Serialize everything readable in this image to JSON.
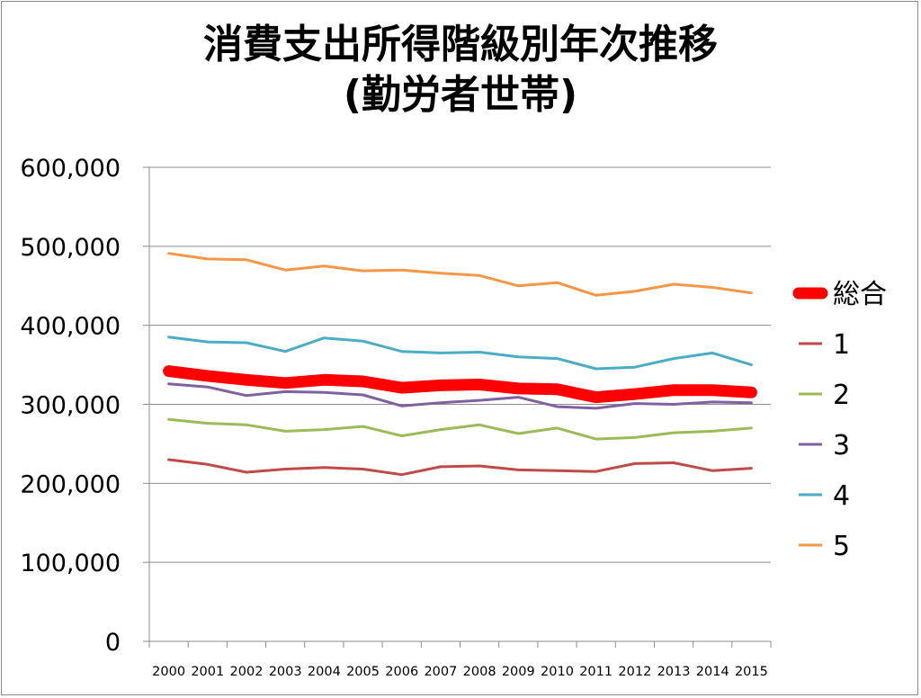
{
  "chart_data": {
    "type": "line",
    "title_lines": [
      "消費支出所得階級別年次推移",
      "(勤労者世帯)"
    ],
    "xlabel": "",
    "ylabel": "",
    "ylim": [
      0,
      600000
    ],
    "yticks": [
      0,
      100000,
      200000,
      300000,
      400000,
      500000,
      600000
    ],
    "ytick_labels": [
      "0",
      "100,000",
      "200,000",
      "300,000",
      "400,000",
      "500,000",
      "600,000"
    ],
    "categories": [
      "2000",
      "2001",
      "2002",
      "2003",
      "2004",
      "2005",
      "2006",
      "2007",
      "2008",
      "2009",
      "2010",
      "2011",
      "2012",
      "2013",
      "2014",
      "2015"
    ],
    "grid": "horizontal",
    "legend_position": "right",
    "series": [
      {
        "name": "総合",
        "color": "#ff0000",
        "emphasis": true,
        "values": [
          342000,
          336000,
          331000,
          327000,
          331000,
          329000,
          321000,
          324000,
          325000,
          320000,
          319000,
          309000,
          313000,
          318000,
          318000,
          315000
        ]
      },
      {
        "name": "1",
        "color": "#be4b48",
        "values": [
          230000,
          224000,
          214000,
          218000,
          220000,
          218000,
          211000,
          221000,
          222000,
          217000,
          216000,
          215000,
          225000,
          226000,
          216000,
          219000
        ]
      },
      {
        "name": "2",
        "color": "#9bbb59",
        "values": [
          281000,
          276000,
          274000,
          266000,
          268000,
          272000,
          260000,
          268000,
          274000,
          263000,
          270000,
          256000,
          258000,
          264000,
          266000,
          270000
        ]
      },
      {
        "name": "3",
        "color": "#7f60a0",
        "values": [
          326000,
          322000,
          311000,
          316000,
          315000,
          312000,
          298000,
          302000,
          305000,
          309000,
          297000,
          295000,
          301000,
          300000,
          303000,
          302000
        ]
      },
      {
        "name": "4",
        "color": "#4aacc5",
        "values": [
          385000,
          379000,
          378000,
          367000,
          384000,
          380000,
          367000,
          365000,
          366000,
          360000,
          358000,
          345000,
          347000,
          358000,
          365000,
          350000
        ]
      },
      {
        "name": "5",
        "color": "#f79645",
        "values": [
          491000,
          484000,
          483000,
          470000,
          475000,
          469000,
          470000,
          466000,
          463000,
          450000,
          454000,
          438000,
          443000,
          452000,
          448000,
          441000
        ]
      }
    ]
  }
}
